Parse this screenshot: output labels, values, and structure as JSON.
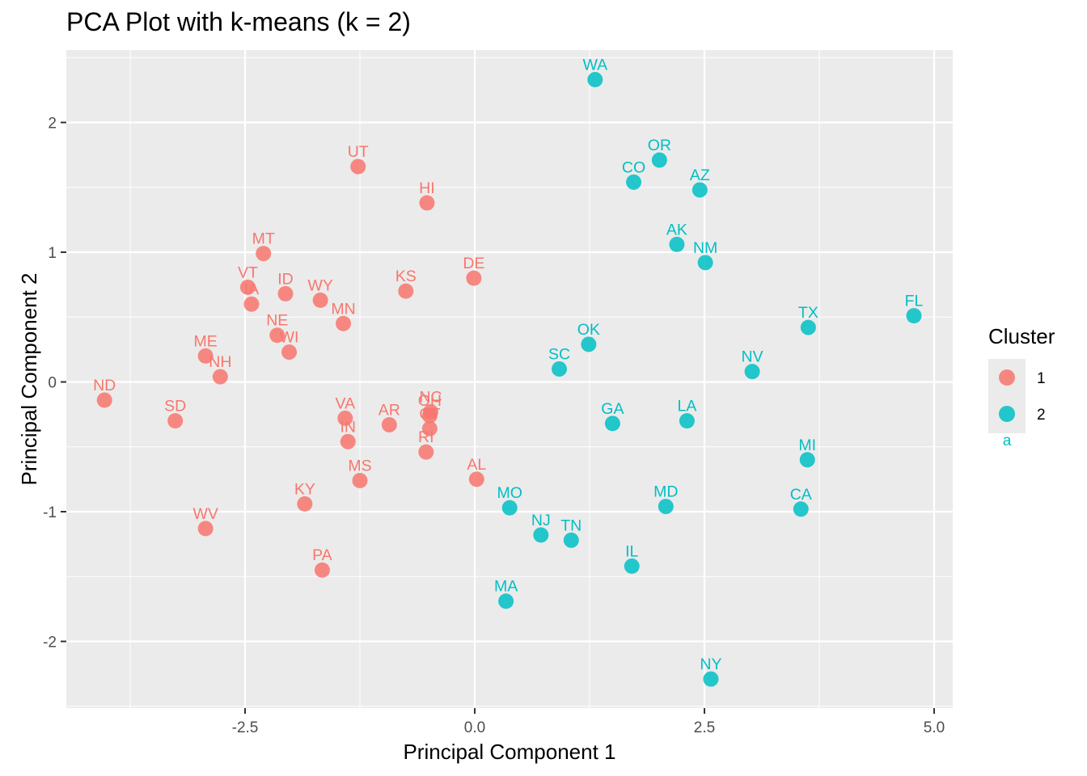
{
  "chart_data": {
    "type": "scatter",
    "title": "PCA Plot with k-means (k = 2)",
    "xlabel": "Principal Component 1",
    "ylabel": "Principal Component 2",
    "xlim": [
      -4.4,
      5.2
    ],
    "ylim": [
      -2.5,
      2.5
    ],
    "x_ticks": [
      -2.5,
      0.0,
      2.5,
      5.0
    ],
    "x_tick_labels": [
      "-2.5",
      "0.0",
      "2.5",
      "5.0"
    ],
    "y_ticks": [
      -2,
      -1,
      0,
      1,
      2
    ],
    "y_tick_labels": [
      "-2",
      "-1",
      "0",
      "1",
      "2"
    ],
    "grid": true,
    "legend": {
      "title": "Cluster",
      "position": "right",
      "entries": [
        {
          "label": "1",
          "color": "#F8766D"
        },
        {
          "label": "2",
          "color": "#00BFC4"
        }
      ],
      "key_glyph_text": "a"
    },
    "colors": {
      "1": "#F8766D",
      "2": "#00BFC4"
    },
    "points": [
      {
        "label": "WA",
        "x": 1.31,
        "y": 2.33,
        "cluster": "2"
      },
      {
        "label": "OR",
        "x": 2.01,
        "y": 1.71,
        "cluster": "2"
      },
      {
        "label": "CO",
        "x": 1.73,
        "y": 1.54,
        "cluster": "2"
      },
      {
        "label": "AZ",
        "x": 2.45,
        "y": 1.48,
        "cluster": "2"
      },
      {
        "label": "AK",
        "x": 2.2,
        "y": 1.06,
        "cluster": "2"
      },
      {
        "label": "NM",
        "x": 2.51,
        "y": 0.92,
        "cluster": "2"
      },
      {
        "label": "FL",
        "x": 4.78,
        "y": 0.51,
        "cluster": "2"
      },
      {
        "label": "TX",
        "x": 3.63,
        "y": 0.42,
        "cluster": "2"
      },
      {
        "label": "OK",
        "x": 1.24,
        "y": 0.29,
        "cluster": "2"
      },
      {
        "label": "SC",
        "x": 0.92,
        "y": 0.1,
        "cluster": "2"
      },
      {
        "label": "NV",
        "x": 3.02,
        "y": 0.08,
        "cluster": "2"
      },
      {
        "label": "GA",
        "x": 1.5,
        "y": -0.32,
        "cluster": "2"
      },
      {
        "label": "LA",
        "x": 2.31,
        "y": -0.3,
        "cluster": "2"
      },
      {
        "label": "MI",
        "x": 3.62,
        "y": -0.6,
        "cluster": "2"
      },
      {
        "label": "MO",
        "x": 0.38,
        "y": -0.97,
        "cluster": "2"
      },
      {
        "label": "MD",
        "x": 2.08,
        "y": -0.96,
        "cluster": "2"
      },
      {
        "label": "CA",
        "x": 3.55,
        "y": -0.98,
        "cluster": "2"
      },
      {
        "label": "NJ",
        "x": 0.72,
        "y": -1.18,
        "cluster": "2"
      },
      {
        "label": "TN",
        "x": 1.05,
        "y": -1.22,
        "cluster": "2"
      },
      {
        "label": "IL",
        "x": 1.71,
        "y": -1.42,
        "cluster": "2"
      },
      {
        "label": "MA",
        "x": 0.34,
        "y": -1.69,
        "cluster": "2"
      },
      {
        "label": "NY",
        "x": 2.57,
        "y": -2.29,
        "cluster": "2"
      },
      {
        "label": "UT",
        "x": -1.27,
        "y": 1.66,
        "cluster": "1"
      },
      {
        "label": "HI",
        "x": -0.52,
        "y": 1.38,
        "cluster": "1"
      },
      {
        "label": "MT",
        "x": -2.3,
        "y": 0.99,
        "cluster": "1"
      },
      {
        "label": "DE",
        "x": -0.01,
        "y": 0.8,
        "cluster": "1"
      },
      {
        "label": "VT",
        "x": -2.47,
        "y": 0.73,
        "cluster": "1"
      },
      {
        "label": "ID",
        "x": -2.06,
        "y": 0.68,
        "cluster": "1"
      },
      {
        "label": "KS",
        "x": -0.75,
        "y": 0.7,
        "cluster": "1"
      },
      {
        "label": "WY",
        "x": -1.68,
        "y": 0.63,
        "cluster": "1"
      },
      {
        "label": "IA",
        "x": -2.43,
        "y": 0.6,
        "cluster": "1"
      },
      {
        "label": "MN",
        "x": -1.43,
        "y": 0.45,
        "cluster": "1"
      },
      {
        "label": "NE",
        "x": -2.15,
        "y": 0.36,
        "cluster": "1"
      },
      {
        "label": "WI",
        "x": -2.02,
        "y": 0.23,
        "cluster": "1"
      },
      {
        "label": "ME",
        "x": -2.93,
        "y": 0.2,
        "cluster": "1"
      },
      {
        "label": "NH",
        "x": -2.77,
        "y": 0.04,
        "cluster": "1"
      },
      {
        "label": "ND",
        "x": -4.03,
        "y": -0.14,
        "cluster": "1"
      },
      {
        "label": "SD",
        "x": -3.26,
        "y": -0.3,
        "cluster": "1"
      },
      {
        "label": "VA",
        "x": -1.41,
        "y": -0.28,
        "cluster": "1"
      },
      {
        "label": "AR",
        "x": -0.93,
        "y": -0.33,
        "cluster": "1"
      },
      {
        "label": "NC",
        "x": -0.48,
        "y": -0.23,
        "cluster": "1"
      },
      {
        "label": "OH",
        "x": -0.49,
        "y": -0.26,
        "cluster": "1"
      },
      {
        "label": "CT",
        "x": -0.49,
        "y": -0.36,
        "cluster": "1"
      },
      {
        "label": "IN",
        "x": -1.38,
        "y": -0.46,
        "cluster": "1"
      },
      {
        "label": "RI",
        "x": -0.53,
        "y": -0.54,
        "cluster": "1"
      },
      {
        "label": "MS",
        "x": -1.25,
        "y": -0.76,
        "cluster": "1"
      },
      {
        "label": "AL",
        "x": 0.02,
        "y": -0.75,
        "cluster": "1"
      },
      {
        "label": "KY",
        "x": -1.85,
        "y": -0.94,
        "cluster": "1"
      },
      {
        "label": "WV",
        "x": -2.93,
        "y": -1.13,
        "cluster": "1"
      },
      {
        "label": "PA",
        "x": -1.66,
        "y": -1.45,
        "cluster": "1"
      }
    ]
  }
}
